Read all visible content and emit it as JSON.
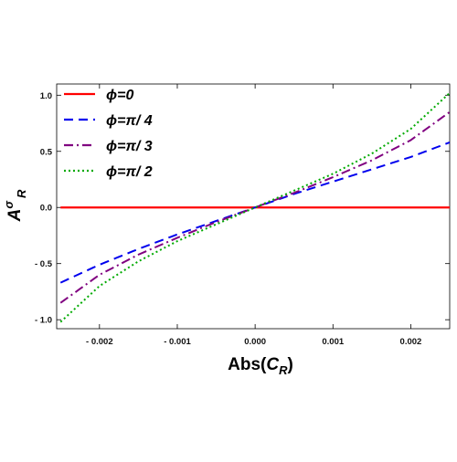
{
  "chart_data": {
    "type": "line",
    "xlabel": {
      "base": "Abs(",
      "var": "C",
      "sub": "R",
      "tail": ")"
    },
    "ylabel": {
      "base": "A",
      "sup": "σ",
      "sub": "R"
    },
    "xlim": [
      -0.00255,
      0.0025
    ],
    "ylim": [
      -1.08,
      1.1
    ],
    "x_ticks": [
      {
        "value": -0.002,
        "label": "- 0.002"
      },
      {
        "value": -0.001,
        "label": "- 0.001"
      },
      {
        "value": 0.0,
        "label": "0.000"
      },
      {
        "value": 0.001,
        "label": "0.001"
      },
      {
        "value": 0.002,
        "label": "0.002"
      }
    ],
    "y_ticks": [
      {
        "value": -1.0,
        "label": "- 1.0"
      },
      {
        "value": -0.5,
        "label": "- 0.5"
      },
      {
        "value": 0.0,
        "label": "0.0"
      },
      {
        "value": 0.5,
        "label": "0.5"
      },
      {
        "value": 1.0,
        "label": "1.0"
      }
    ],
    "grid": false,
    "legend_position": "top-left",
    "series": [
      {
        "name": "ϕ=0",
        "color": "#ff0000",
        "dash": "solid",
        "x": [
          -0.0025,
          -0.002,
          -0.0015,
          -0.001,
          -0.0005,
          0.0,
          0.0005,
          0.001,
          0.0015,
          0.002,
          0.0025
        ],
        "y": [
          0,
          0,
          0,
          0,
          0,
          0,
          0,
          0,
          0,
          0,
          0
        ]
      },
      {
        "name": "ϕ=π/ 4",
        "color": "#0000ee",
        "dash": "dashed",
        "x": [
          -0.0025,
          -0.002,
          -0.0015,
          -0.001,
          -0.0005,
          0.0,
          0.0005,
          0.001,
          0.0015,
          0.002,
          0.0025
        ],
        "y": [
          -0.67,
          -0.51,
          -0.37,
          -0.24,
          -0.12,
          0.0,
          0.12,
          0.23,
          0.34,
          0.45,
          0.58
        ]
      },
      {
        "name": "ϕ=π/ 3",
        "color": "#800080",
        "dash": "dash-dot",
        "x": [
          -0.0025,
          -0.002,
          -0.0015,
          -0.001,
          -0.0005,
          0.0,
          0.0005,
          0.001,
          0.0015,
          0.002,
          0.0025
        ],
        "y": [
          -0.85,
          -0.6,
          -0.42,
          -0.27,
          -0.13,
          0.0,
          0.13,
          0.27,
          0.42,
          0.6,
          0.85
        ]
      },
      {
        "name": "ϕ=π/ 2",
        "color": "#00aa00",
        "dash": "dotted",
        "x": [
          -0.0025,
          -0.002,
          -0.0015,
          -0.001,
          -0.0005,
          0.0,
          0.0005,
          0.001,
          0.0015,
          0.002,
          0.0025
        ],
        "y": [
          -1.02,
          -0.7,
          -0.48,
          -0.3,
          -0.15,
          0.0,
          0.15,
          0.3,
          0.48,
          0.7,
          1.02
        ]
      }
    ]
  }
}
